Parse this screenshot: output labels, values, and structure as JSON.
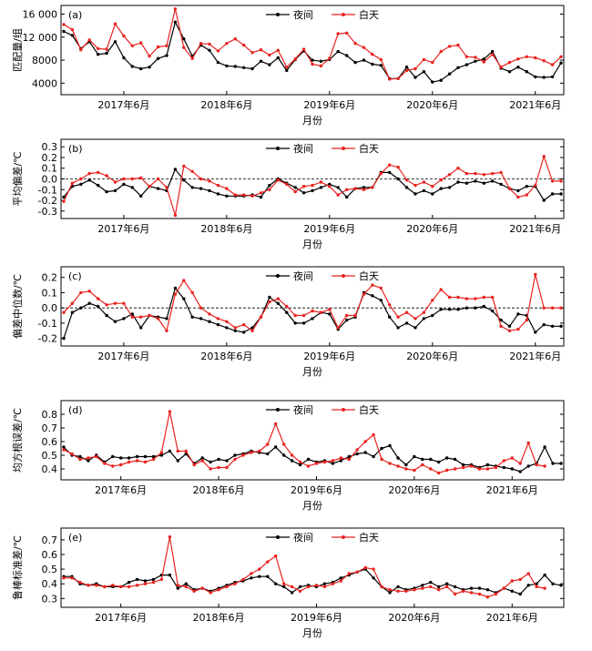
{
  "chart_data": [
    {
      "type": "line",
      "panel_label": "(a)",
      "ylabel": "匹配量/组",
      "xlabel": "月份",
      "ylim": [
        2000,
        17500
      ],
      "yticks": [
        4000,
        8000,
        12000,
        16000
      ],
      "ytick_labels": [
        "4000",
        "8000",
        "12 000",
        "16 000"
      ],
      "ref_line": null,
      "series": [
        {
          "name": "夜间",
          "color": "#000000",
          "values": [
            13000,
            12300,
            10000,
            11200,
            9000,
            9200,
            11200,
            8400,
            6900,
            6500,
            6800,
            8300,
            8800,
            14600,
            11700,
            8700,
            10600,
            9700,
            7600,
            7000,
            6900,
            6700,
            6500,
            7800,
            7200,
            8400,
            6200,
            8100,
            9600,
            8000,
            7800,
            8100,
            9500,
            8800,
            7600,
            8000,
            7300,
            7100,
            4800,
            4800,
            6800,
            5000,
            6000,
            4200,
            4500,
            5600,
            6700,
            7200,
            7800,
            8200,
            9500,
            6600,
            6000,
            6800,
            6000,
            5100,
            5000,
            5100,
            7500
          ]
        },
        {
          "name": "白天",
          "color": "#e8231f",
          "values": [
            14200,
            13300,
            9800,
            11500,
            10000,
            9900,
            14300,
            12200,
            10500,
            11000,
            8700,
            10300,
            10500,
            16900,
            10200,
            8300,
            10900,
            10800,
            9600,
            10900,
            11700,
            10600,
            9300,
            9800,
            8900,
            9700,
            6800,
            8200,
            9900,
            7300,
            7000,
            8300,
            12600,
            12700,
            10900,
            10200,
            9000,
            8100,
            4700,
            4800,
            6200,
            6500,
            8100,
            7600,
            9500,
            10400,
            10600,
            8600,
            8500,
            7700,
            9000,
            6800,
            7600,
            8200,
            8600,
            8400,
            7900,
            7200,
            8600
          ]
        }
      ]
    },
    {
      "type": "line",
      "panel_label": "(b)",
      "ylabel": "平均偏差/℃",
      "xlabel": "月份",
      "ylim": [
        -0.37,
        0.37
      ],
      "yticks": [
        -0.3,
        -0.2,
        -0.1,
        0.0,
        0.1,
        0.2,
        0.3
      ],
      "ytick_labels": [
        "-0.3",
        "-0.2",
        "-0.1",
        "0.0",
        "0.1",
        "0.2",
        "0.3"
      ],
      "ref_line": 0,
      "series": [
        {
          "name": "夜间",
          "color": "#000000",
          "values": [
            -0.17,
            -0.07,
            -0.05,
            -0.01,
            -0.06,
            -0.12,
            -0.11,
            -0.05,
            -0.08,
            -0.16,
            -0.07,
            -0.09,
            -0.11,
            0.09,
            -0.01,
            -0.08,
            -0.09,
            -0.11,
            -0.14,
            -0.16,
            -0.16,
            -0.16,
            -0.15,
            -0.17,
            -0.06,
            0.0,
            -0.04,
            -0.08,
            -0.13,
            -0.11,
            -0.08,
            -0.05,
            -0.08,
            -0.17,
            -0.09,
            -0.08,
            -0.08,
            0.06,
            0.06,
            0.0,
            -0.08,
            -0.14,
            -0.11,
            -0.14,
            -0.09,
            -0.08,
            -0.03,
            -0.04,
            -0.02,
            -0.04,
            -0.02,
            -0.05,
            -0.09,
            -0.11,
            -0.07,
            -0.07,
            -0.2,
            -0.14,
            -0.14
          ]
        },
        {
          "name": "白天",
          "color": "#e8231f",
          "values": [
            -0.21,
            -0.04,
            0.0,
            0.05,
            0.06,
            0.03,
            -0.03,
            0.0,
            0.0,
            0.01,
            -0.07,
            0.0,
            -0.08,
            -0.34,
            0.12,
            0.07,
            0.0,
            -0.02,
            -0.06,
            -0.09,
            -0.15,
            -0.15,
            -0.16,
            -0.13,
            -0.1,
            -0.01,
            -0.05,
            -0.12,
            -0.07,
            -0.06,
            -0.03,
            -0.07,
            -0.15,
            -0.1,
            -0.09,
            -0.1,
            -0.08,
            0.05,
            0.13,
            0.11,
            -0.01,
            -0.06,
            -0.03,
            -0.07,
            -0.01,
            0.04,
            0.1,
            0.05,
            0.05,
            0.04,
            0.05,
            0.06,
            -0.09,
            -0.17,
            -0.15,
            -0.06,
            0.21,
            -0.02,
            -0.02
          ]
        }
      ]
    },
    {
      "type": "line",
      "panel_label": "(c)",
      "ylabel": "偏差中位数/℃",
      "xlabel": "月份",
      "ylim": [
        -0.25,
        0.27
      ],
      "yticks": [
        -0.2,
        -0.1,
        0.0,
        0.1,
        0.2
      ],
      "ytick_labels": [
        "-0.2",
        "-0.1",
        "0.0",
        "0.1",
        "0.2"
      ],
      "ref_line": 0,
      "series": [
        {
          "name": "夜间",
          "color": "#000000",
          "values": [
            -0.2,
            -0.03,
            0.0,
            0.03,
            0.01,
            -0.05,
            -0.09,
            -0.07,
            -0.04,
            -0.13,
            -0.05,
            -0.06,
            -0.07,
            0.13,
            0.06,
            -0.06,
            -0.07,
            -0.09,
            -0.11,
            -0.13,
            -0.15,
            -0.16,
            -0.13,
            -0.06,
            0.07,
            0.03,
            -0.03,
            -0.1,
            -0.1,
            -0.07,
            -0.03,
            -0.04,
            -0.14,
            -0.08,
            -0.06,
            0.1,
            0.08,
            0.05,
            -0.06,
            -0.13,
            -0.1,
            -0.13,
            -0.07,
            -0.05,
            -0.01,
            -0.01,
            -0.01,
            0.0,
            0.0,
            0.01,
            -0.02,
            -0.08,
            -0.12,
            -0.04,
            -0.05,
            -0.16,
            -0.11,
            -0.12,
            -0.12
          ]
        },
        {
          "name": "白天",
          "color": "#e8231f",
          "values": [
            -0.03,
            0.03,
            0.1,
            0.11,
            0.06,
            0.02,
            0.03,
            0.03,
            -0.06,
            -0.06,
            -0.05,
            -0.07,
            -0.15,
            0.09,
            0.18,
            0.1,
            0.0,
            -0.04,
            -0.07,
            -0.09,
            -0.13,
            -0.11,
            -0.15,
            -0.06,
            0.04,
            0.06,
            0.01,
            -0.05,
            -0.05,
            -0.02,
            -0.03,
            -0.01,
            -0.13,
            -0.05,
            -0.05,
            0.09,
            0.15,
            0.13,
            0.02,
            -0.06,
            -0.03,
            -0.07,
            -0.03,
            0.05,
            0.12,
            0.07,
            0.07,
            0.06,
            0.06,
            0.07,
            0.07,
            -0.12,
            -0.15,
            -0.14,
            -0.08,
            0.22,
            0.0,
            0.0,
            0.0
          ]
        }
      ]
    },
    {
      "type": "line",
      "panel_label": "(d)",
      "ylabel": "均方根误差/℃",
      "xlabel": "月份",
      "ylim": [
        0.32,
        0.9
      ],
      "yticks": [
        0.4,
        0.5,
        0.6,
        0.7,
        0.8
      ],
      "ytick_labels": [
        "0.4",
        "0.5",
        "0.6",
        "0.7",
        "0.8"
      ],
      "ref_line": null,
      "series": [
        {
          "name": "夜间",
          "color": "#000000",
          "values": [
            0.56,
            0.5,
            0.49,
            0.46,
            0.5,
            0.45,
            0.49,
            0.48,
            0.48,
            0.49,
            0.49,
            0.49,
            0.5,
            0.53,
            0.46,
            0.51,
            0.44,
            0.48,
            0.45,
            0.47,
            0.46,
            0.5,
            0.51,
            0.53,
            0.52,
            0.51,
            0.56,
            0.5,
            0.46,
            0.43,
            0.47,
            0.45,
            0.46,
            0.44,
            0.46,
            0.49,
            0.51,
            0.52,
            0.49,
            0.55,
            0.57,
            0.48,
            0.43,
            0.49,
            0.47,
            0.47,
            0.45,
            0.48,
            0.47,
            0.43,
            0.43,
            0.41,
            0.43,
            0.42,
            0.41,
            0.4,
            0.38,
            0.42,
            0.44,
            0.56,
            0.44,
            0.44
          ]
        },
        {
          "name": "白天",
          "color": "#e8231f",
          "values": [
            0.54,
            0.51,
            0.47,
            0.48,
            0.49,
            0.44,
            0.42,
            0.43,
            0.45,
            0.46,
            0.45,
            0.47,
            0.52,
            0.82,
            0.53,
            0.53,
            0.43,
            0.46,
            0.4,
            0.41,
            0.41,
            0.47,
            0.5,
            0.52,
            0.53,
            0.58,
            0.73,
            0.58,
            0.5,
            0.45,
            0.42,
            0.44,
            0.45,
            0.46,
            0.48,
            0.47,
            0.54,
            0.6,
            0.65,
            0.47,
            0.44,
            0.42,
            0.4,
            0.39,
            0.43,
            0.4,
            0.37,
            0.39,
            0.4,
            0.41,
            0.42,
            0.4,
            0.4,
            0.41,
            0.46,
            0.48,
            0.44,
            0.59,
            0.43,
            0.42
          ]
        }
      ]
    },
    {
      "type": "line",
      "panel_label": "(e)",
      "ylabel": "鲁棒标准差/℃",
      "xlabel": "月份",
      "ylim": [
        0.24,
        0.78
      ],
      "yticks": [
        0.3,
        0.4,
        0.5,
        0.6,
        0.7
      ],
      "ytick_labels": [
        "0.3",
        "0.4",
        "0.5",
        "0.6",
        "0.7"
      ],
      "ref_line": null,
      "series": [
        {
          "name": "夜间",
          "color": "#000000",
          "values": [
            0.45,
            0.45,
            0.4,
            0.39,
            0.4,
            0.38,
            0.38,
            0.38,
            0.41,
            0.43,
            0.42,
            0.43,
            0.46,
            0.46,
            0.37,
            0.4,
            0.36,
            0.37,
            0.35,
            0.37,
            0.39,
            0.41,
            0.42,
            0.44,
            0.45,
            0.45,
            0.4,
            0.38,
            0.34,
            0.38,
            0.39,
            0.38,
            0.4,
            0.41,
            0.44,
            0.46,
            0.48,
            0.5,
            0.44,
            0.38,
            0.34,
            0.38,
            0.36,
            0.37,
            0.39,
            0.41,
            0.38,
            0.4,
            0.38,
            0.36,
            0.37,
            0.37,
            0.36,
            0.34,
            0.37,
            0.35,
            0.33,
            0.39,
            0.4,
            0.46,
            0.4,
            0.39
          ]
        },
        {
          "name": "白天",
          "color": "#e8231f",
          "values": [
            0.44,
            0.44,
            0.41,
            0.39,
            0.39,
            0.38,
            0.39,
            0.38,
            0.38,
            0.39,
            0.4,
            0.41,
            0.43,
            0.72,
            0.39,
            0.38,
            0.35,
            0.37,
            0.34,
            0.36,
            0.38,
            0.4,
            0.43,
            0.47,
            0.5,
            0.55,
            0.59,
            0.4,
            0.38,
            0.35,
            0.38,
            0.39,
            0.38,
            0.4,
            0.42,
            0.47,
            0.48,
            0.51,
            0.5,
            0.38,
            0.36,
            0.35,
            0.35,
            0.36,
            0.37,
            0.38,
            0.36,
            0.38,
            0.33,
            0.35,
            0.34,
            0.33,
            0.31,
            0.33,
            0.37,
            0.42,
            0.43,
            0.47,
            0.38,
            0.37
          ]
        }
      ]
    }
  ],
  "x_axis": {
    "tick_labels": [
      "2017年6月",
      "2018年6月",
      "2019年6月",
      "2020年6月",
      "2021年6月"
    ]
  }
}
